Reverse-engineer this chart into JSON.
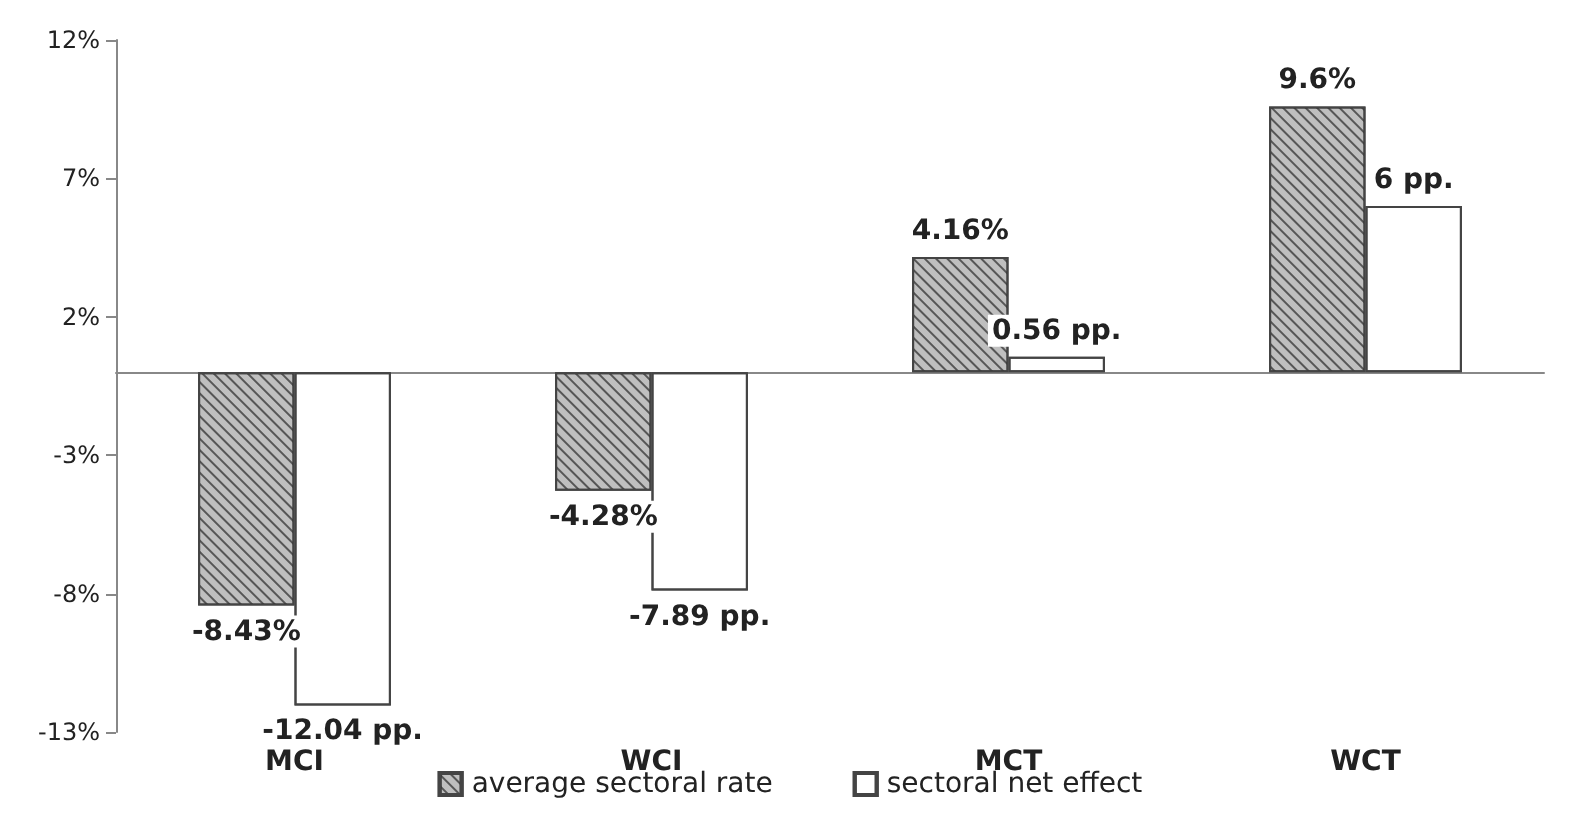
{
  "chart_data": {
    "type": "bar",
    "categories": [
      "MCI",
      "WCI",
      "MCT",
      "WCT"
    ],
    "series": [
      {
        "name": "average sectoral rate",
        "color": "#bfbfbf",
        "values": [
          -8.43,
          -4.28,
          4.16,
          9.6
        ],
        "value_labels": [
          "-8.43%",
          "-4.28%",
          "4.16%",
          "9.6%"
        ]
      },
      {
        "name": "sectoral net effect",
        "color": "#ffffff",
        "values": [
          -12.04,
          -7.89,
          0.56,
          6
        ],
        "value_labels": [
          "-12.04 pp.",
          "-7.89 pp.",
          "0.56 pp.",
          "6 pp."
        ]
      }
    ],
    "ylim": [
      -13,
      12
    ],
    "yticks": [
      {
        "value": -13,
        "label": "-13%"
      },
      {
        "value": -8,
        "label": "-8%"
      },
      {
        "value": -3,
        "label": "-3%"
      },
      {
        "value": 2,
        "label": "2%"
      },
      {
        "value": 7,
        "label": "7%"
      },
      {
        "value": 12,
        "label": "12%"
      }
    ],
    "grid": false,
    "legend": "bottom"
  }
}
